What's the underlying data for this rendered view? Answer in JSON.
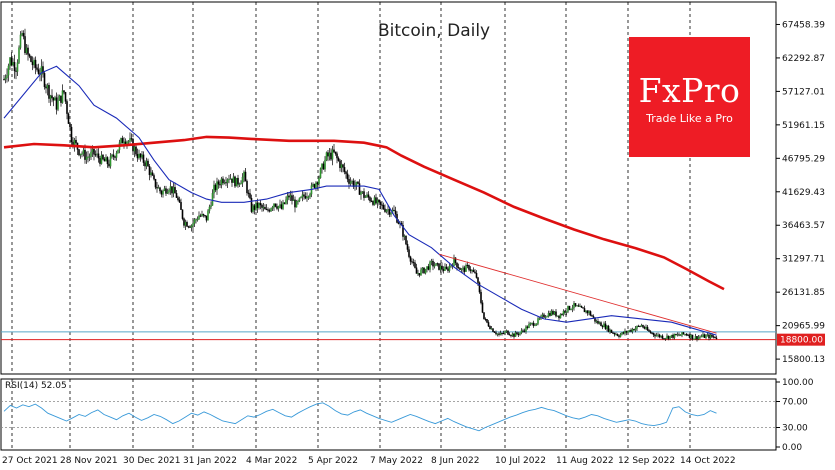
{
  "chart_data": [
    {
      "type": "candlestick",
      "title": "Bitcoin, Daily",
      "y_ticks": [
        "67458.39",
        "62292.87",
        "57127.01",
        "51961.15",
        "46795.29",
        "41629.43",
        "36463.57",
        "31297.71",
        "26131.85",
        "20965.99",
        "15800.13"
      ],
      "ylim": [
        13500,
        70000
      ],
      "x_ticks": [
        "27 Oct 2021",
        "28 Nov 2021",
        "30 Dec 2021",
        "31 Jan 2022",
        "4 Mar 2022",
        "5 Apr 2022",
        "7 May 2022",
        "8 Jun 2022",
        "10 Jul 2022",
        "11 Aug 2022",
        "12 Sep 2022",
        "14 Oct 2022"
      ],
      "price_badge": "18800.00",
      "grid": "vertical dashed",
      "close_path": [
        [
          0,
          59000
        ],
        [
          4,
          62000
        ],
        [
          8,
          61000
        ],
        [
          12,
          66000
        ],
        [
          15,
          63000
        ],
        [
          20,
          61000
        ],
        [
          25,
          60000
        ],
        [
          30,
          57000
        ],
        [
          35,
          55000
        ],
        [
          40,
          57000
        ],
        [
          45,
          50000
        ],
        [
          50,
          48000
        ],
        [
          55,
          47000
        ],
        [
          60,
          47500
        ],
        [
          65,
          46500
        ],
        [
          70,
          46000
        ],
        [
          75,
          48000
        ],
        [
          80,
          50000
        ],
        [
          85,
          49000
        ],
        [
          90,
          47000
        ],
        [
          95,
          46000
        ],
        [
          100,
          43000
        ],
        [
          105,
          41500
        ],
        [
          110,
          42500
        ],
        [
          115,
          41000
        ],
        [
          120,
          37000
        ],
        [
          125,
          36500
        ],
        [
          130,
          38000
        ],
        [
          135,
          37500
        ],
        [
          140,
          42000
        ],
        [
          145,
          43500
        ],
        [
          150,
          44000
        ],
        [
          155,
          43000
        ],
        [
          160,
          44000
        ],
        [
          165,
          39000
        ],
        [
          170,
          39500
        ],
        [
          175,
          38500
        ],
        [
          180,
          40000
        ],
        [
          185,
          39000
        ],
        [
          190,
          41000
        ],
        [
          195,
          39500
        ],
        [
          200,
          41000
        ],
        [
          205,
          42000
        ],
        [
          210,
          44000
        ],
        [
          215,
          47000
        ],
        [
          220,
          47500
        ],
        [
          225,
          45500
        ],
        [
          230,
          43500
        ],
        [
          235,
          42500
        ],
        [
          240,
          41000
        ],
        [
          245,
          40500
        ],
        [
          250,
          39500
        ],
        [
          255,
          39000
        ],
        [
          260,
          38500
        ],
        [
          265,
          36000
        ],
        [
          270,
          32000
        ],
        [
          275,
          29000
        ],
        [
          280,
          29500
        ],
        [
          285,
          30500
        ],
        [
          290,
          30000
        ],
        [
          295,
          29500
        ],
        [
          300,
          31000
        ],
        [
          305,
          29500
        ],
        [
          310,
          30000
        ],
        [
          315,
          28500
        ],
        [
          320,
          22000
        ],
        [
          325,
          20500
        ],
        [
          330,
          19500
        ],
        [
          335,
          20000
        ],
        [
          340,
          19500
        ],
        [
          345,
          20000
        ],
        [
          350,
          21000
        ],
        [
          355,
          21500
        ],
        [
          360,
          22500
        ],
        [
          365,
          23000
        ],
        [
          370,
          22500
        ],
        [
          375,
          23500
        ],
        [
          380,
          24000
        ],
        [
          385,
          23500
        ],
        [
          390,
          23000
        ],
        [
          395,
          21500
        ],
        [
          400,
          21000
        ],
        [
          405,
          20000
        ],
        [
          410,
          19500
        ],
        [
          415,
          20000
        ],
        [
          420,
          20500
        ],
        [
          425,
          21000
        ],
        [
          430,
          20000
        ],
        [
          435,
          19500
        ],
        [
          440,
          19200
        ],
        [
          445,
          19300
        ],
        [
          450,
          19500
        ],
        [
          455,
          19700
        ],
        [
          460,
          19100
        ],
        [
          465,
          19300
        ],
        [
          470,
          19300
        ],
        [
          475,
          19200
        ]
      ],
      "ma_blue": [
        [
          0,
          53000
        ],
        [
          25,
          60000
        ],
        [
          35,
          61000
        ],
        [
          50,
          58000
        ],
        [
          60,
          55000
        ],
        [
          75,
          53000
        ],
        [
          90,
          50000
        ],
        [
          100,
          46500
        ],
        [
          110,
          43500
        ],
        [
          125,
          41500
        ],
        [
          135,
          40500
        ],
        [
          145,
          40000
        ],
        [
          160,
          40000
        ],
        [
          175,
          40500
        ],
        [
          190,
          41500
        ],
        [
          205,
          42000
        ],
        [
          215,
          42500
        ],
        [
          225,
          42500
        ],
        [
          240,
          42500
        ],
        [
          250,
          42000
        ],
        [
          260,
          38000
        ],
        [
          270,
          35000
        ],
        [
          285,
          33000
        ],
        [
          300,
          30000
        ],
        [
          315,
          27500
        ],
        [
          330,
          25500
        ],
        [
          345,
          23500
        ],
        [
          360,
          22000
        ],
        [
          375,
          21500
        ],
        [
          390,
          22000
        ],
        [
          405,
          22500
        ],
        [
          425,
          22000
        ],
        [
          445,
          21500
        ],
        [
          460,
          20500
        ],
        [
          475,
          19500
        ]
      ],
      "ma_red": [
        [
          0,
          48500
        ],
        [
          20,
          49000
        ],
        [
          40,
          48800
        ],
        [
          60,
          48500
        ],
        [
          80,
          48800
        ],
        [
          100,
          49200
        ],
        [
          120,
          49600
        ],
        [
          135,
          50100
        ],
        [
          150,
          50000
        ],
        [
          165,
          49800
        ],
        [
          190,
          49500
        ],
        [
          220,
          49500
        ],
        [
          240,
          49200
        ],
        [
          255,
          48500
        ],
        [
          265,
          47200
        ],
        [
          280,
          45500
        ],
        [
          300,
          43500
        ],
        [
          320,
          41500
        ],
        [
          340,
          39300
        ],
        [
          360,
          37500
        ],
        [
          380,
          35800
        ],
        [
          400,
          34300
        ],
        [
          420,
          33000
        ],
        [
          440,
          31500
        ],
        [
          455,
          29700
        ],
        [
          470,
          27800
        ],
        [
          480,
          26600
        ]
      ],
      "trendline": [
        [
          290,
          32000
        ],
        [
          475,
          19800
        ]
      ],
      "support_level": 18800,
      "resistance_level": 20000
    },
    {
      "type": "line",
      "label": "RSI(14) 52.05",
      "y_ticks": [
        "100.00",
        "70.00",
        "30.00",
        "0.00"
      ],
      "ylim": [
        0,
        100
      ],
      "levels": [
        70,
        30
      ],
      "values": [
        55,
        64,
        60,
        65,
        62,
        66,
        60,
        52,
        48,
        44,
        40,
        45,
        50,
        47,
        53,
        57,
        50,
        46,
        42,
        48,
        52,
        46,
        41,
        45,
        50,
        47,
        42,
        36,
        40,
        46,
        52,
        49,
        54,
        50,
        45,
        40,
        38,
        36,
        42,
        48,
        46,
        50,
        55,
        58,
        53,
        48,
        46,
        52,
        57,
        62,
        66,
        68,
        63,
        56,
        51,
        49,
        54,
        57,
        52,
        48,
        44,
        41,
        38,
        42,
        46,
        50,
        47,
        43,
        39,
        36,
        40,
        44,
        39,
        35,
        31,
        28,
        25,
        30,
        34,
        38,
        42,
        46,
        49,
        53,
        56,
        58,
        61,
        58,
        56,
        52,
        48,
        45,
        43,
        46,
        50,
        48,
        44,
        41,
        38,
        40,
        42,
        40,
        36,
        34,
        33,
        35,
        38,
        60,
        62,
        54,
        50,
        48,
        50,
        56,
        52
      ]
    }
  ],
  "logo": {
    "brand": "FxPro",
    "tagline": "Trade Like a Pro"
  }
}
